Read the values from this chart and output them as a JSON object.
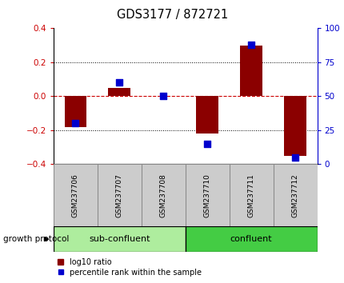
{
  "title": "GDS3177 / 872721",
  "samples": [
    "GSM237706",
    "GSM237707",
    "GSM237708",
    "GSM237710",
    "GSM237711",
    "GSM237712"
  ],
  "log10_ratio": [
    -0.18,
    0.05,
    0.0,
    -0.22,
    0.3,
    -0.35
  ],
  "percentile_rank": [
    30,
    60,
    50,
    15,
    88,
    5
  ],
  "ylim_left": [
    -0.4,
    0.4
  ],
  "ylim_right": [
    0,
    100
  ],
  "yticks_left": [
    -0.4,
    -0.2,
    0.0,
    0.2,
    0.4
  ],
  "yticks_right": [
    0,
    25,
    50,
    75,
    100
  ],
  "groups": [
    {
      "label": "sub-confluent",
      "start": 0,
      "end": 3,
      "color": "#aeed9e"
    },
    {
      "label": "confluent",
      "start": 3,
      "end": 6,
      "color": "#44cc44"
    }
  ],
  "group_label": "growth protocol",
  "bar_color": "#8B0000",
  "dot_color": "#0000CD",
  "bar_width": 0.5,
  "dot_size": 30,
  "hline_color": "#CC0000",
  "grid_color": "#000000",
  "title_color": "#000000",
  "left_tick_color": "#CC0000",
  "right_tick_color": "#0000CD",
  "sample_box_color": "#CCCCCC",
  "plot_bg_color": "#FFFFFF"
}
